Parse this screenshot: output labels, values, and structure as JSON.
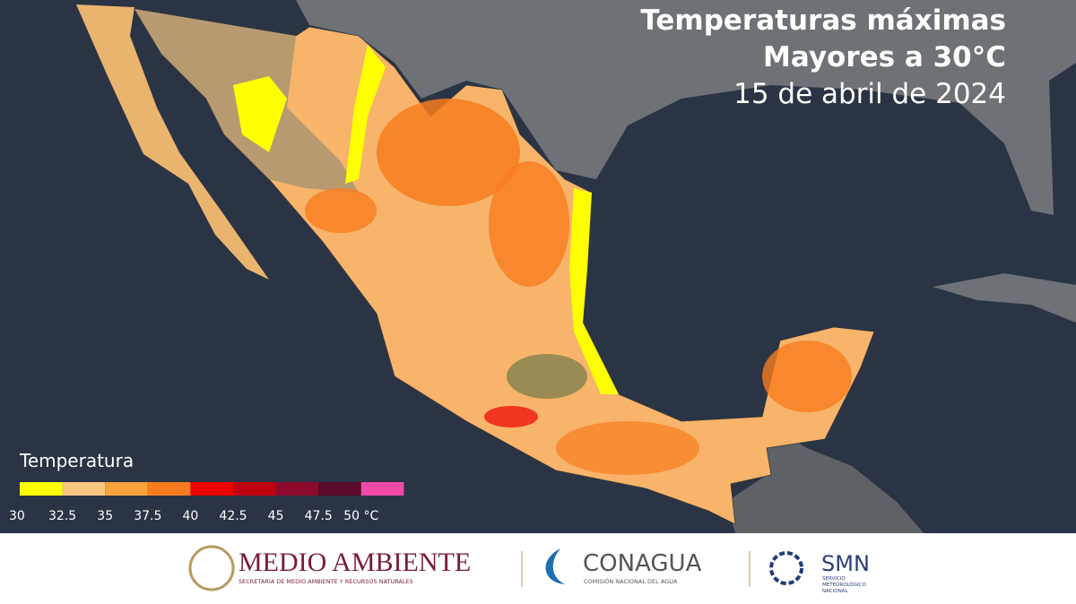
{
  "header": {
    "title_lines": [
      "Temperaturas máximas",
      "Mayores a 30°C"
    ],
    "date": "15 de abril de 2024"
  },
  "legend": {
    "title": "Temperatura",
    "colors": [
      "#ffff00",
      "#f9c680",
      "#f7a23c",
      "#f77c1f",
      "#ee0000",
      "#c00010",
      "#8c0a2c",
      "#5a0a2a",
      "#ee4aa6"
    ],
    "labels": [
      "30",
      "32.5",
      "35",
      "37.5",
      "40",
      "42.5",
      "45",
      "47.5",
      "50 °C"
    ]
  },
  "footer": {
    "logos": [
      {
        "name": "MEDIO AMBIENTE",
        "subtitle": "SECRETARÍA DE MEDIO AMBIENTE Y RECURSOS NATURALES"
      },
      {
        "name": "CONAGUA",
        "subtitle": "COMISIÓN NACIONAL DEL AGUA"
      },
      {
        "name": "SMN",
        "subtitle_lines": [
          "SERVICIO",
          "METEOROLÓGICO",
          "NACIONAL"
        ]
      }
    ]
  }
}
